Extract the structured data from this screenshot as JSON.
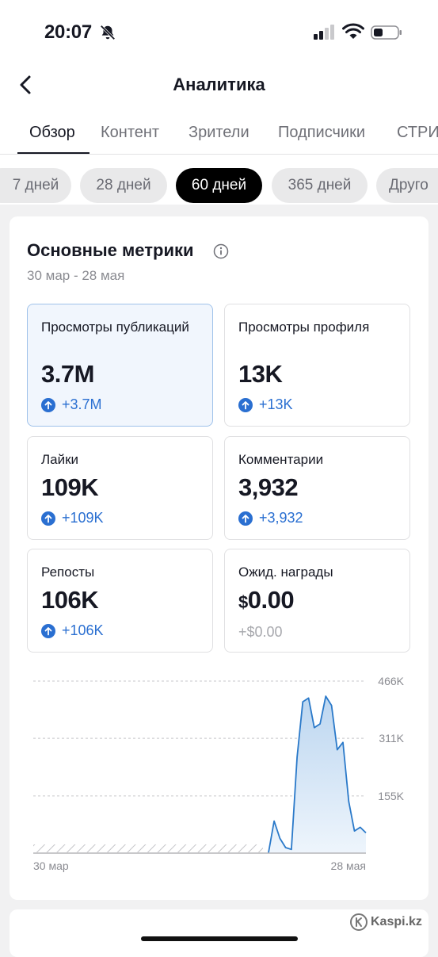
{
  "status_bar": {
    "time": "20:07"
  },
  "header": {
    "title": "Аналитика"
  },
  "tabs": [
    {
      "label": "Обзор",
      "active": true
    },
    {
      "label": "Контент"
    },
    {
      "label": "Зрители"
    },
    {
      "label": "Подписчики"
    },
    {
      "label": "СТРИ"
    }
  ],
  "periods": [
    {
      "label": "7 дней"
    },
    {
      "label": "28 дней"
    },
    {
      "label": "60 дней",
      "active": true
    },
    {
      "label": "365 дней"
    },
    {
      "label": "Друго"
    }
  ],
  "metrics_section": {
    "title": "Основные метрики",
    "date_range": "30 мар - 28 мая",
    "cards": [
      {
        "label": "Просмотры публикаций",
        "value": "3.7M",
        "change": "+3.7M",
        "selected": true
      },
      {
        "label": "Просмотры профиля",
        "value": "13K",
        "change": "+13K"
      },
      {
        "label": "Лайки",
        "value": "109K",
        "change": "+109K"
      },
      {
        "label": "Комментарии",
        "value": "3,932",
        "change": "+3,932"
      },
      {
        "label": "Репосты",
        "value": "106K",
        "change": "+106K"
      },
      {
        "label": "Ожид. награды",
        "currency": "$",
        "value": "0.00",
        "change": "+$0.00"
      }
    ]
  },
  "chart_data": {
    "type": "area",
    "y_tick_labels": [
      "466K",
      "311K",
      "155K"
    ],
    "y_ticks": [
      466000,
      311000,
      155000
    ],
    "ylim": [
      0,
      466000
    ],
    "x_tick_labels": [
      "30 мар",
      "28 мая"
    ],
    "x_range": [
      "30 мар",
      "28 мая"
    ],
    "values": [
      0,
      0,
      0,
      0,
      0,
      0,
      0,
      0,
      0,
      0,
      0,
      0,
      0,
      0,
      0,
      0,
      0,
      0,
      0,
      0,
      0,
      0,
      0,
      0,
      0,
      0,
      0,
      0,
      0,
      0,
      0,
      0,
      0,
      0,
      0,
      0,
      0,
      0,
      0,
      0,
      0,
      0,
      87000,
      40000,
      15000,
      10000,
      260000,
      410000,
      420000,
      340000,
      350000,
      425000,
      400000,
      280000,
      300000,
      140000,
      60000,
      70000,
      55000
    ],
    "line_color": "#2a79c9",
    "fill_color": "#d6e7f7",
    "grid": "dashed"
  },
  "colors": {
    "accent": "#2a6fd1",
    "active_pill": "#000000"
  },
  "watermark": {
    "text": "Kaspi.kz"
  }
}
